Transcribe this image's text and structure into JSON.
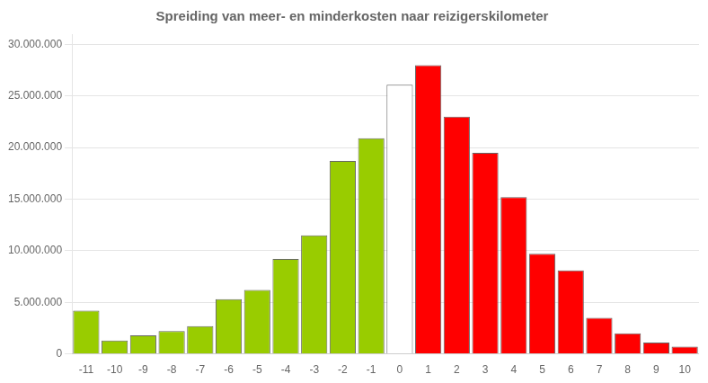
{
  "chart_data": {
    "type": "bar",
    "title": "Spreiding van meer- en minderkosten naar reizigerskilometer",
    "categories": [
      "-11",
      "-10",
      "-9",
      "-8",
      "-7",
      "-6",
      "-5",
      "-4",
      "-3",
      "-2",
      "-1",
      "0",
      "1",
      "2",
      "3",
      "4",
      "5",
      "6",
      "7",
      "8",
      "9",
      "10"
    ],
    "values": [
      4200000,
      1300000,
      1800000,
      2200000,
      2700000,
      5300000,
      6200000,
      9200000,
      11500000,
      18700000,
      20900000,
      26100000,
      28000000,
      23000000,
      19500000,
      15200000,
      9700000,
      8100000,
      3500000,
      2000000,
      1100000,
      700000
    ],
    "colors": [
      "#99cc00",
      "#99cc00",
      "#99cc00",
      "#99cc00",
      "#99cc00",
      "#99cc00",
      "#99cc00",
      "#99cc00",
      "#99cc00",
      "#99cc00",
      "#99cc00",
      "#ffffff",
      "#ff0000",
      "#ff0000",
      "#ff0000",
      "#ff0000",
      "#ff0000",
      "#ff0000",
      "#ff0000",
      "#ff0000",
      "#ff0000",
      "#ff0000"
    ],
    "ylim": [
      0,
      31000000
    ],
    "yticks": [
      0,
      {
        "value": 5000000,
        "label": "5.000.000"
      },
      {
        "value": 10000000,
        "label": "10.000.000"
      },
      {
        "value": 15000000,
        "label": "15.000.000"
      },
      {
        "value": 20000000,
        "label": "20.000.000"
      },
      {
        "value": 25000000,
        "label": "25.000.000"
      },
      {
        "value": 30000000,
        "label": "30.000.000"
      }
    ],
    "grid": true
  }
}
